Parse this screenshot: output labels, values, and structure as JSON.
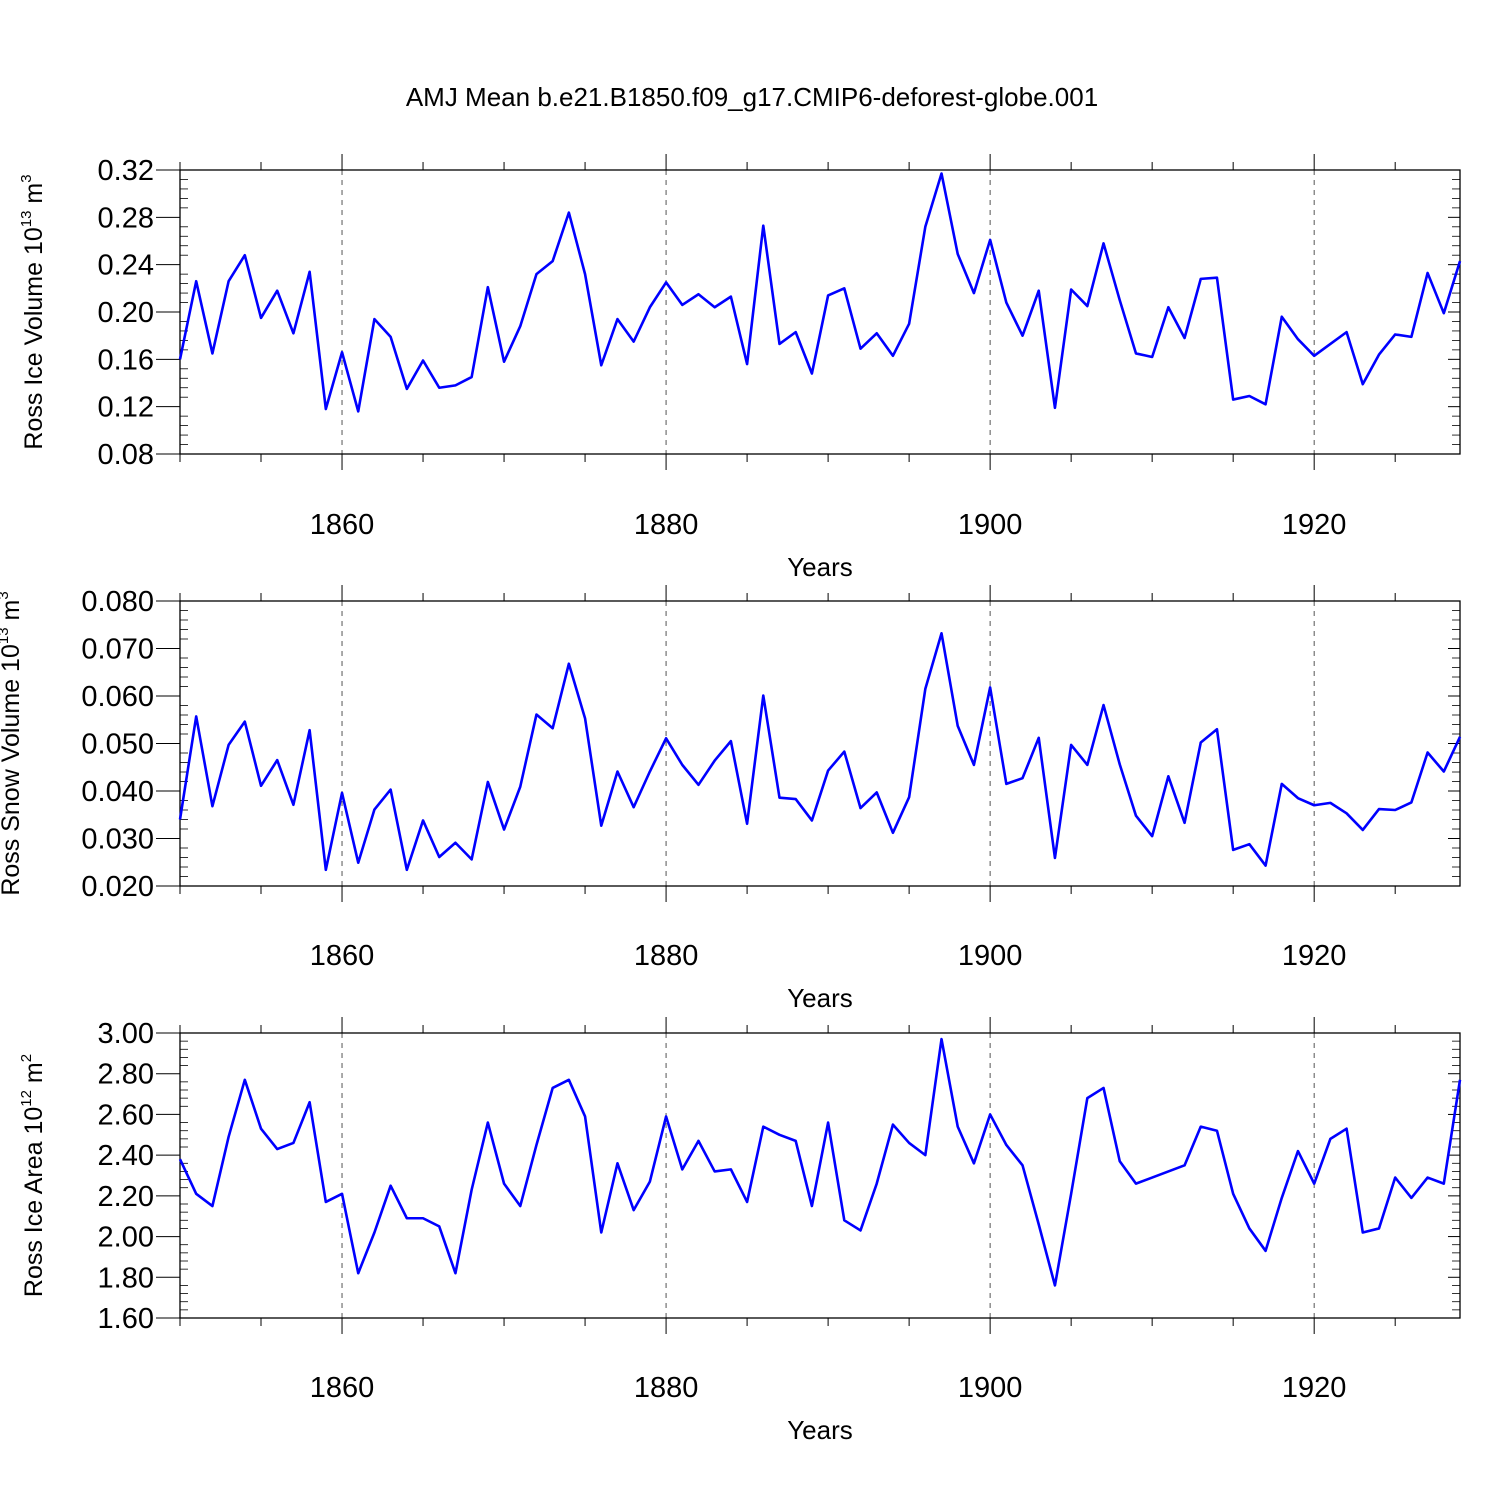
{
  "title": "AMJ Mean b.e21.B1850.f09_g17.CMIP6-deforest-globe.001",
  "colors": {
    "line": "#0000ff",
    "axis": "#000000",
    "grid": "#555555"
  },
  "chart_data": [
    {
      "type": "line",
      "xlabel": "Years",
      "ylabel": {
        "text": "Ross Ice Volume 10",
        "exponent": "13",
        "unit": " m",
        "unit_exponent": "3"
      },
      "xlim": [
        1850,
        1929
      ],
      "ylim": [
        0.08,
        0.32
      ],
      "xticks": [
        1860,
        1880,
        1900,
        1920
      ],
      "yticks": [
        "0.08",
        "0.12",
        "0.16",
        "0.20",
        "0.24",
        "0.28",
        "0.32"
      ],
      "grid": "vertical-dashed-at-major-x",
      "x_start": 1850,
      "values": [
        0.16,
        0.226,
        0.165,
        0.226,
        0.248,
        0.195,
        0.218,
        0.182,
        0.234,
        0.118,
        0.166,
        0.116,
        0.194,
        0.179,
        0.135,
        0.159,
        0.136,
        0.138,
        0.145,
        0.221,
        0.158,
        0.188,
        0.232,
        0.243,
        0.284,
        0.232,
        0.155,
        0.194,
        0.175,
        0.204,
        0.225,
        0.206,
        0.215,
        0.204,
        0.213,
        0.156,
        0.273,
        0.173,
        0.183,
        0.148,
        0.214,
        0.22,
        0.169,
        0.182,
        0.163,
        0.19,
        0.272,
        0.317,
        0.249,
        0.216,
        0.261,
        0.208,
        0.18,
        0.218,
        0.119,
        0.219,
        0.205,
        0.258,
        0.21,
        0.165,
        0.162,
        0.204,
        0.178,
        0.228,
        0.229,
        0.126,
        0.129,
        0.122,
        0.196,
        0.177,
        0.163,
        0.173,
        0.183,
        0.139,
        0.164,
        0.181,
        0.179,
        0.233,
        0.199,
        0.243
      ]
    },
    {
      "type": "line",
      "xlabel": "Years",
      "ylabel": {
        "text": "Ross Snow Volume 10",
        "exponent": "13",
        "unit": " m",
        "unit_exponent": "3"
      },
      "xlim": [
        1850,
        1929
      ],
      "ylim": [
        0.02,
        0.08
      ],
      "xticks": [
        1860,
        1880,
        1900,
        1920
      ],
      "yticks": [
        "0.020",
        "0.030",
        "0.040",
        "0.050",
        "0.060",
        "0.070",
        "0.080"
      ],
      "grid": "vertical-dashed-at-major-x",
      "x_start": 1850,
      "values": [
        0.034,
        0.0557,
        0.0368,
        0.0497,
        0.0546,
        0.0411,
        0.0465,
        0.0371,
        0.0528,
        0.0234,
        0.0396,
        0.0249,
        0.0361,
        0.0403,
        0.0234,
        0.0338,
        0.0261,
        0.0291,
        0.0256,
        0.0419,
        0.0319,
        0.0409,
        0.0561,
        0.0532,
        0.0668,
        0.0553,
        0.0327,
        0.0441,
        0.0366,
        0.0441,
        0.0511,
        0.0455,
        0.0413,
        0.0464,
        0.0505,
        0.0331,
        0.0601,
        0.0386,
        0.0383,
        0.0338,
        0.0443,
        0.0483,
        0.0364,
        0.0397,
        0.0312,
        0.0387,
        0.0615,
        0.0732,
        0.0537,
        0.0455,
        0.0618,
        0.0415,
        0.0427,
        0.0512,
        0.0259,
        0.0497,
        0.0455,
        0.0581,
        0.0456,
        0.0348,
        0.0305,
        0.0431,
        0.0333,
        0.0502,
        0.053,
        0.0276,
        0.0288,
        0.0243,
        0.0415,
        0.0385,
        0.037,
        0.0375,
        0.0353,
        0.0318,
        0.0362,
        0.036,
        0.0376,
        0.0481,
        0.0441,
        0.0514
      ]
    },
    {
      "type": "line",
      "xlabel": "Years",
      "ylabel": {
        "text": "Ross Ice Area 10",
        "exponent": "12",
        "unit": " m",
        "unit_exponent": "2"
      },
      "xlim": [
        1850,
        1929
      ],
      "ylim": [
        1.6,
        3.0
      ],
      "xticks": [
        1860,
        1880,
        1900,
        1920
      ],
      "yticks": [
        "1.60",
        "1.80",
        "2.00",
        "2.20",
        "2.40",
        "2.60",
        "2.80",
        "3.00"
      ],
      "grid": "vertical-dashed-at-major-x",
      "x_start": 1850,
      "values": [
        2.38,
        2.21,
        2.15,
        2.49,
        2.77,
        2.53,
        2.43,
        2.46,
        2.66,
        2.17,
        2.21,
        1.82,
        2.02,
        2.25,
        2.09,
        2.09,
        2.05,
        1.82,
        2.23,
        2.56,
        2.26,
        2.15,
        2.45,
        2.73,
        2.77,
        2.59,
        2.02,
        2.36,
        2.13,
        2.27,
        2.59,
        2.33,
        2.47,
        2.32,
        2.33,
        2.17,
        2.54,
        2.5,
        2.47,
        2.15,
        2.56,
        2.08,
        2.03,
        2.26,
        2.55,
        2.46,
        2.4,
        2.97,
        2.54,
        2.36,
        2.6,
        2.45,
        2.35,
        2.06,
        1.76,
        2.21,
        2.68,
        2.73,
        2.37,
        2.26,
        2.29,
        2.32,
        2.35,
        2.54,
        2.52,
        2.21,
        2.04,
        1.93,
        2.19,
        2.42,
        2.26,
        2.48,
        2.53,
        2.02,
        2.04,
        2.29,
        2.19,
        2.29,
        2.26,
        2.77
      ]
    }
  ]
}
